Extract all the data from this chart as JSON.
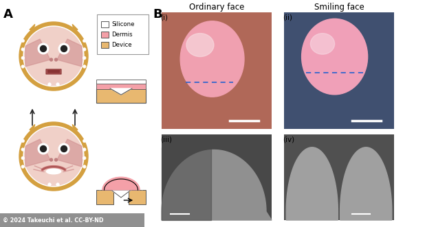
{
  "fig_width": 6.34,
  "fig_height": 3.31,
  "dpi": 100,
  "bg_color": "#ffffff",
  "panel_a_label": "A",
  "panel_b_label": "B",
  "legend_items": [
    {
      "label": "Silicone",
      "color": "#ffffff",
      "edgecolor": "#555555"
    },
    {
      "label": "Dermis",
      "color": "#f4a0a8",
      "edgecolor": "#555555"
    },
    {
      "label": "Device",
      "color": "#e8b870",
      "edgecolor": "#555555"
    }
  ],
  "sub_labels": [
    "(i)",
    "(ii)",
    "(iii)",
    "(iv)"
  ],
  "photo_titles": [
    "Ordinary face",
    "Smiling face"
  ],
  "frame_color": "#d4a040",
  "frame_ring_color": "#c89030",
  "face_bg_color": "#f0d0c8",
  "face_inner_color": "#e8c0b8",
  "skin_accent": "#d09090",
  "eye_white": "#ffffff",
  "eye_dark": "#222222",
  "nose_color": "#c08080",
  "mouth_color": "#aa5555",
  "teeth_color": "#ffffff",
  "connector_color": "#cccccc",
  "connector_dark": "#888888",
  "spike_color": "#d4a040",
  "silicone_color": "#ffffff",
  "dermis_color": "#f4a0a8",
  "device_color": "#e8b870",
  "device_outline": "#555555",
  "photo1_bg": "#c87060",
  "photo1_gold": "#c8a030",
  "photo1_face": "#f0a0b0",
  "photo1_face2": "#e89098",
  "photo2_bg": "#708090",
  "photo2_face": "#f0a0b8",
  "sem_bg1": "#484848",
  "sem_fg1": "#909090",
  "sem_bg2": "#505050",
  "sem_fg2": "#a0a0a0",
  "dashed_line_color": "#3366cc",
  "scale_bar_color": "#ffffff",
  "copyright_text": "© 2024 Takeuchi et al. CC-BY-ND",
  "copyright_bg": "#909090",
  "copyright_color": "#ffffff",
  "arrow_color": "#222222"
}
